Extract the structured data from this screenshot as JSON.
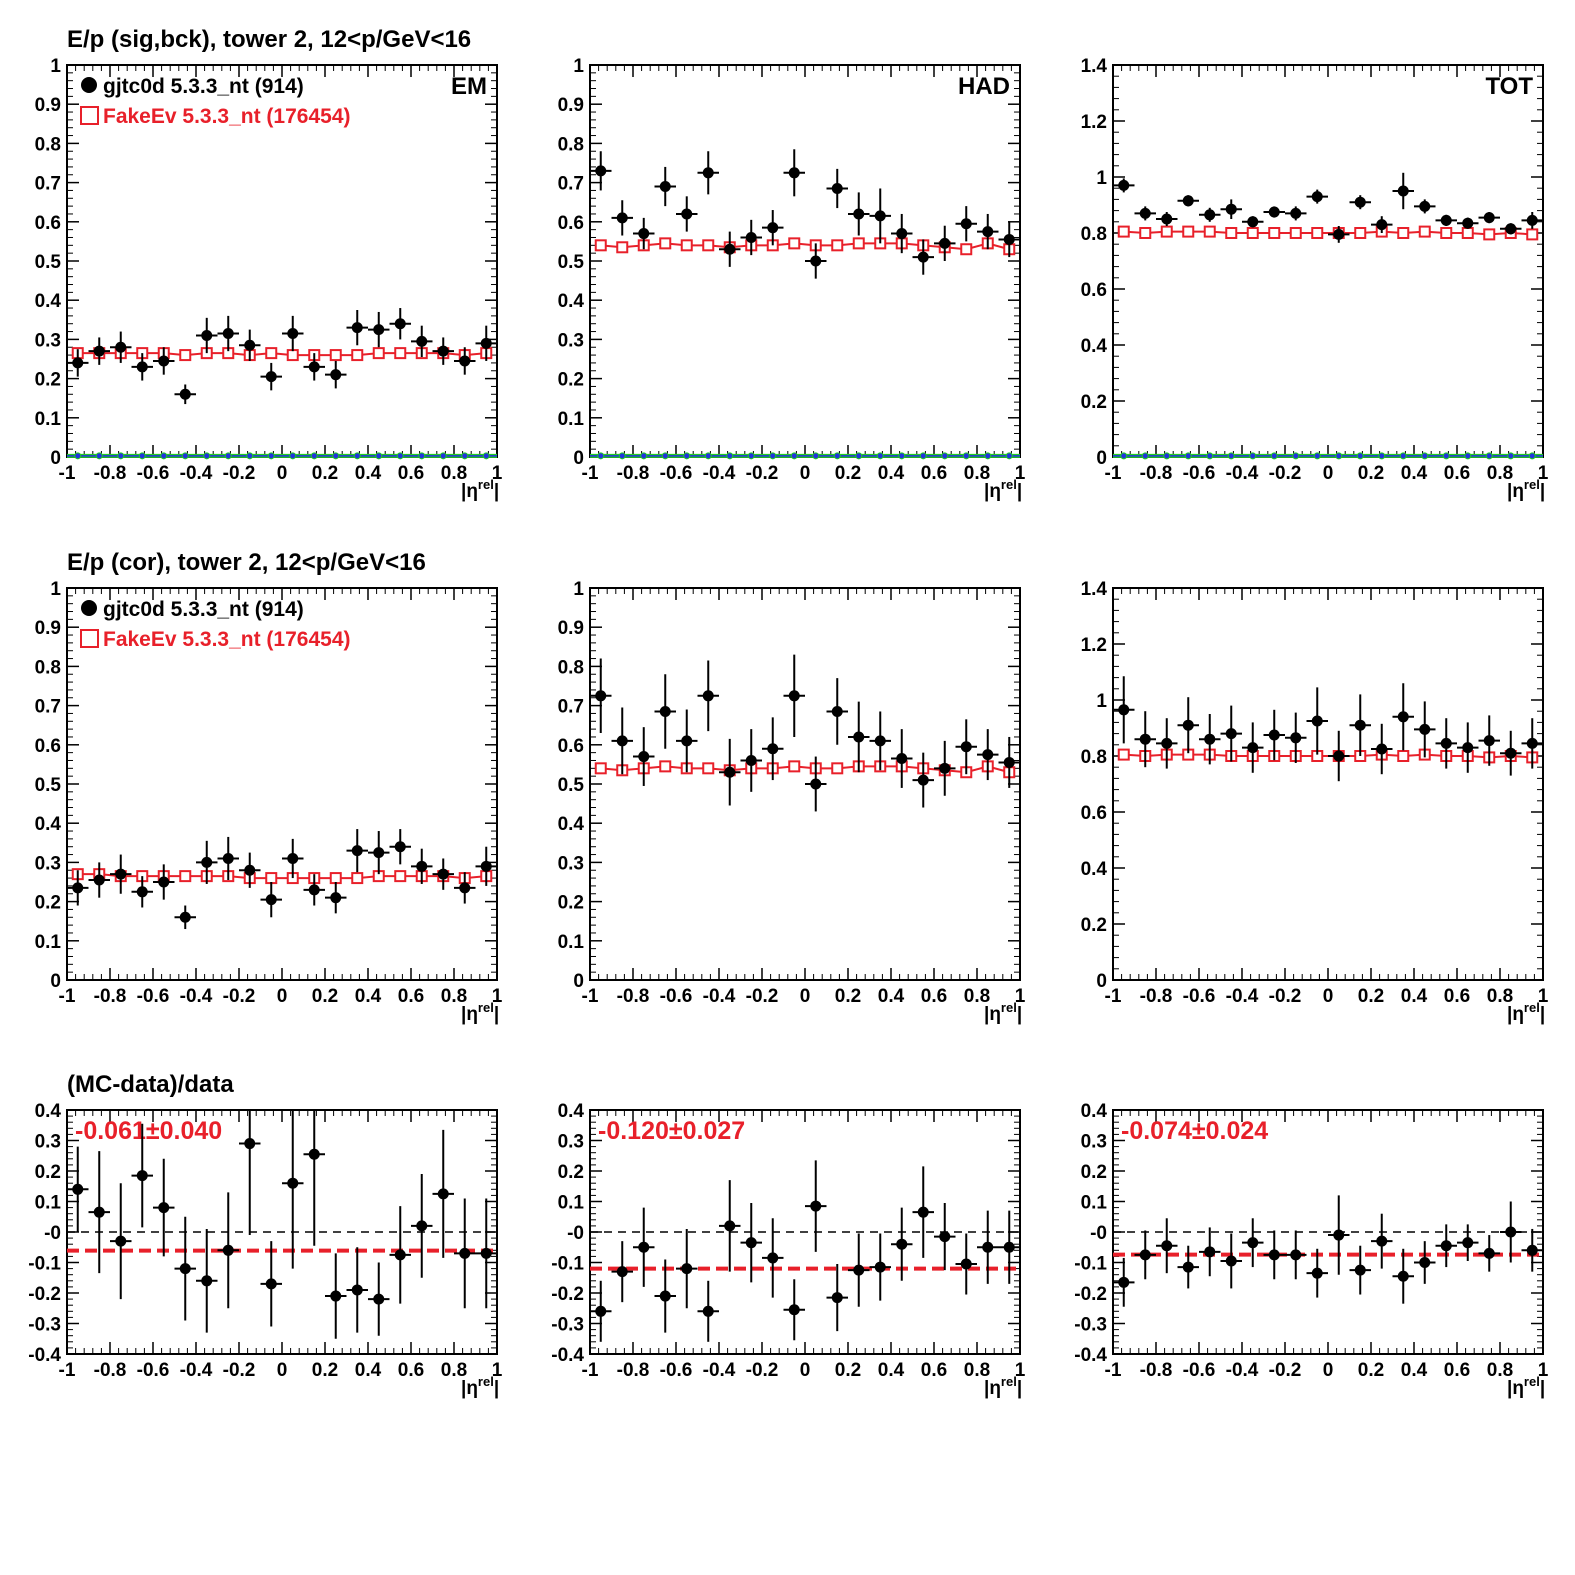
{
  "colors": {
    "data": "#000000",
    "mc": "#e8202a",
    "bg_blue": "#2233dd",
    "bg_green": "#22cc22",
    "axis": "#000000"
  },
  "chart_data": [
    {
      "type": "scatter",
      "row": 0,
      "col": 0,
      "title": "E/p (sig,bck), tower 2, 12<p/GeV<16",
      "corner_label": "EM",
      "xlabel": "|η",
      "xlabel_sup": "rel",
      "xlabel_end": "|",
      "xlim": [
        -1,
        1
      ],
      "ylim": [
        0,
        1
      ],
      "yticks": [
        "0",
        "0.1",
        "0.2",
        "0.3",
        "0.4",
        "0.5",
        "0.6",
        "0.7",
        "0.8",
        "0.9",
        "1"
      ],
      "ytick_values": [
        0,
        0.1,
        0.2,
        0.3,
        0.4,
        0.5,
        0.6,
        0.7,
        0.8,
        0.9,
        1
      ],
      "legend": [
        {
          "label": "gjtc0d 5.3.3_nt (914)",
          "marker": "filled-circle"
        },
        {
          "label": "FakeEv 5.3.3_nt (176454)",
          "marker": "open-square"
        }
      ],
      "data": {
        "y": [
          0.24,
          0.27,
          0.28,
          0.23,
          0.245,
          0.16,
          0.31,
          0.315,
          0.285,
          0.205,
          0.315,
          0.23,
          0.21,
          0.33,
          0.325,
          0.34,
          0.295,
          0.27,
          0.245,
          0.29
        ],
        "err": [
          0.035,
          0.035,
          0.04,
          0.035,
          0.035,
          0.025,
          0.045,
          0.045,
          0.04,
          0.035,
          0.045,
          0.035,
          0.035,
          0.045,
          0.045,
          0.04,
          0.04,
          0.035,
          0.035,
          0.045
        ]
      },
      "mc": {
        "y": [
          0.265,
          0.265,
          0.265,
          0.265,
          0.265,
          0.26,
          0.265,
          0.265,
          0.26,
          0.265,
          0.26,
          0.26,
          0.26,
          0.26,
          0.265,
          0.265,
          0.265,
          0.265,
          0.26,
          0.265
        ]
      },
      "background": {
        "y": 0.003
      }
    },
    {
      "type": "scatter",
      "row": 0,
      "col": 1,
      "corner_label": "HAD",
      "xlabel": "|η",
      "xlabel_sup": "rel",
      "xlabel_end": "|",
      "xlim": [
        -1,
        1
      ],
      "ylim": [
        0,
        1
      ],
      "yticks": [
        "0",
        "0.1",
        "0.2",
        "0.3",
        "0.4",
        "0.5",
        "0.6",
        "0.7",
        "0.8",
        "0.9",
        "1"
      ],
      "ytick_values": [
        0,
        0.1,
        0.2,
        0.3,
        0.4,
        0.5,
        0.6,
        0.7,
        0.8,
        0.9,
        1
      ],
      "data": {
        "y": [
          0.73,
          0.61,
          0.57,
          0.69,
          0.62,
          0.725,
          0.53,
          0.56,
          0.585,
          0.725,
          0.5,
          0.685,
          0.62,
          0.615,
          0.57,
          0.51,
          0.545,
          0.595,
          0.575,
          0.555
        ],
        "err": [
          0.05,
          0.045,
          0.04,
          0.05,
          0.045,
          0.055,
          0.045,
          0.045,
          0.045,
          0.06,
          0.045,
          0.05,
          0.055,
          0.07,
          0.05,
          0.045,
          0.045,
          0.045,
          0.045,
          0.045
        ]
      },
      "mc": {
        "y": [
          0.54,
          0.535,
          0.54,
          0.545,
          0.54,
          0.54,
          0.535,
          0.54,
          0.54,
          0.545,
          0.54,
          0.54,
          0.545,
          0.545,
          0.545,
          0.54,
          0.535,
          0.53,
          0.545,
          0.53
        ]
      },
      "background": {
        "y": 0.003
      }
    },
    {
      "type": "scatter",
      "row": 0,
      "col": 2,
      "corner_label": "TOT",
      "xlabel": "|η",
      "xlabel_sup": "rel",
      "xlabel_end": "|",
      "xlim": [
        -1,
        1
      ],
      "ylim": [
        0,
        1.4
      ],
      "yticks": [
        "0",
        "0.2",
        "0.4",
        "0.6",
        "0.8",
        "1",
        "1.2",
        "1.4"
      ],
      "ytick_values": [
        0,
        0.2,
        0.4,
        0.6,
        0.8,
        1,
        1.2,
        1.4
      ],
      "data": {
        "y": [
          0.97,
          0.87,
          0.85,
          0.915,
          0.865,
          0.885,
          0.84,
          0.875,
          0.87,
          0.93,
          0.795,
          0.91,
          0.83,
          0.95,
          0.895,
          0.845,
          0.835,
          0.855,
          0.815,
          0.845
        ],
        "err": [
          0.025,
          0.025,
          0.025,
          0.02,
          0.025,
          0.035,
          0.02,
          0.02,
          0.025,
          0.025,
          0.03,
          0.025,
          0.03,
          0.065,
          0.025,
          0.02,
          0.02,
          0.02,
          0.02,
          0.03
        ]
      },
      "mc": {
        "y": [
          0.805,
          0.8,
          0.805,
          0.805,
          0.805,
          0.8,
          0.8,
          0.8,
          0.8,
          0.8,
          0.8,
          0.8,
          0.805,
          0.8,
          0.805,
          0.8,
          0.8,
          0.795,
          0.8,
          0.795
        ]
      },
      "background": {
        "y": 0.004
      }
    },
    {
      "type": "scatter",
      "row": 1,
      "col": 0,
      "title": "E/p (cor), tower 2, 12<p/GeV<16",
      "xlabel": "|η",
      "xlabel_sup": "rel",
      "xlabel_end": "|",
      "xlim": [
        -1,
        1
      ],
      "ylim": [
        0,
        1
      ],
      "yticks": [
        "0",
        "0.1",
        "0.2",
        "0.3",
        "0.4",
        "0.5",
        "0.6",
        "0.7",
        "0.8",
        "0.9",
        "1"
      ],
      "ytick_values": [
        0,
        0.1,
        0.2,
        0.3,
        0.4,
        0.5,
        0.6,
        0.7,
        0.8,
        0.9,
        1
      ],
      "legend": [
        {
          "label": "gjtc0d 5.3.3_nt (914)",
          "marker": "filled-circle"
        },
        {
          "label": "FakeEv 5.3.3_nt (176454)",
          "marker": "open-square"
        }
      ],
      "data": {
        "y": [
          0.235,
          0.255,
          0.27,
          0.225,
          0.25,
          0.16,
          0.3,
          0.31,
          0.28,
          0.205,
          0.31,
          0.23,
          0.21,
          0.33,
          0.325,
          0.34,
          0.29,
          0.27,
          0.235,
          0.29
        ],
        "err": [
          0.045,
          0.045,
          0.05,
          0.04,
          0.045,
          0.03,
          0.055,
          0.055,
          0.045,
          0.045,
          0.05,
          0.04,
          0.04,
          0.055,
          0.055,
          0.045,
          0.045,
          0.04,
          0.04,
          0.05
        ]
      },
      "mc": {
        "y": [
          0.27,
          0.27,
          0.265,
          0.265,
          0.265,
          0.265,
          0.265,
          0.265,
          0.26,
          0.26,
          0.26,
          0.26,
          0.26,
          0.26,
          0.265,
          0.265,
          0.265,
          0.265,
          0.26,
          0.265
        ]
      }
    },
    {
      "type": "scatter",
      "row": 1,
      "col": 1,
      "xlabel": "|η",
      "xlabel_sup": "rel",
      "xlabel_end": "|",
      "xlim": [
        -1,
        1
      ],
      "ylim": [
        0,
        1
      ],
      "yticks": [
        "0",
        "0.1",
        "0.2",
        "0.3",
        "0.4",
        "0.5",
        "0.6",
        "0.7",
        "0.8",
        "0.9",
        "1"
      ],
      "ytick_values": [
        0,
        0.1,
        0.2,
        0.3,
        0.4,
        0.5,
        0.6,
        0.7,
        0.8,
        0.9,
        1
      ],
      "data": {
        "y": [
          0.725,
          0.61,
          0.57,
          0.685,
          0.61,
          0.725,
          0.53,
          0.56,
          0.59,
          0.725,
          0.5,
          0.685,
          0.62,
          0.61,
          0.565,
          0.51,
          0.54,
          0.595,
          0.575,
          0.555
        ],
        "err": [
          0.095,
          0.085,
          0.075,
          0.095,
          0.08,
          0.09,
          0.085,
          0.08,
          0.08,
          0.105,
          0.07,
          0.085,
          0.09,
          0.075,
          0.075,
          0.07,
          0.07,
          0.07,
          0.065,
          0.065
        ]
      },
      "mc": {
        "y": [
          0.54,
          0.535,
          0.54,
          0.545,
          0.54,
          0.54,
          0.535,
          0.54,
          0.54,
          0.545,
          0.54,
          0.54,
          0.545,
          0.545,
          0.545,
          0.54,
          0.535,
          0.53,
          0.545,
          0.53
        ]
      }
    },
    {
      "type": "scatter",
      "row": 1,
      "col": 2,
      "xlabel": "|η",
      "xlabel_sup": "rel",
      "xlabel_end": "|",
      "xlim": [
        -1,
        1
      ],
      "ylim": [
        0,
        1.4
      ],
      "yticks": [
        "0",
        "0.2",
        "0.4",
        "0.6",
        "0.8",
        "1",
        "1.2",
        "1.4"
      ],
      "ytick_values": [
        0,
        0.2,
        0.4,
        0.6,
        0.8,
        1,
        1.2,
        1.4
      ],
      "data": {
        "y": [
          0.965,
          0.86,
          0.845,
          0.91,
          0.86,
          0.88,
          0.83,
          0.875,
          0.865,
          0.925,
          0.8,
          0.91,
          0.825,
          0.94,
          0.895,
          0.845,
          0.83,
          0.855,
          0.81,
          0.845
        ],
        "err": [
          0.12,
          0.1,
          0.09,
          0.1,
          0.09,
          0.1,
          0.09,
          0.09,
          0.09,
          0.12,
          0.09,
          0.11,
          0.09,
          0.12,
          0.1,
          0.09,
          0.09,
          0.09,
          0.08,
          0.09
        ]
      },
      "mc": {
        "y": [
          0.805,
          0.8,
          0.805,
          0.805,
          0.805,
          0.8,
          0.8,
          0.8,
          0.8,
          0.8,
          0.8,
          0.8,
          0.805,
          0.8,
          0.805,
          0.8,
          0.8,
          0.795,
          0.8,
          0.795
        ]
      }
    },
    {
      "type": "scatter",
      "row": 2,
      "col": 0,
      "title": "(MC-data)/data",
      "annotation": "-0.061±0.040",
      "fit": -0.061,
      "xlabel": "|η",
      "xlabel_sup": "rel",
      "xlabel_end": "|",
      "xlim": [
        -1,
        1
      ],
      "ylim": [
        -0.4,
        0.4
      ],
      "yticks": [
        "-0.4",
        "-0.3",
        "-0.2",
        "-0.1",
        "-0",
        "0.1",
        "0.2",
        "0.3",
        "0.4"
      ],
      "ytick_values": [
        -0.4,
        -0.3,
        -0.2,
        -0.1,
        0,
        0.1,
        0.2,
        0.3,
        0.4
      ],
      "data": {
        "y": [
          0.14,
          0.065,
          -0.03,
          0.185,
          0.08,
          -0.12,
          -0.16,
          -0.06,
          0.29,
          -0.17,
          0.16,
          0.255,
          -0.21,
          -0.19,
          -0.22,
          -0.075,
          0.02,
          0.125,
          -0.07,
          -0.07
        ],
        "err": [
          0.14,
          0.2,
          0.19,
          0.17,
          0.16,
          0.17,
          0.17,
          0.19,
          0.3,
          0.14,
          0.28,
          0.3,
          0.14,
          0.14,
          0.12,
          0.16,
          0.17,
          0.21,
          0.18,
          0.18
        ]
      }
    },
    {
      "type": "scatter",
      "row": 2,
      "col": 1,
      "annotation": "-0.120±0.027",
      "fit": -0.12,
      "xlabel": "|η",
      "xlabel_sup": "rel",
      "xlabel_end": "|",
      "xlim": [
        -1,
        1
      ],
      "ylim": [
        -0.4,
        0.4
      ],
      "yticks": [
        "-0.4",
        "-0.3",
        "-0.2",
        "-0.1",
        "-0",
        "0.1",
        "0.2",
        "0.3",
        "0.4"
      ],
      "ytick_values": [
        -0.4,
        -0.3,
        -0.2,
        -0.1,
        0,
        0.1,
        0.2,
        0.3,
        0.4
      ],
      "data": {
        "y": [
          -0.26,
          -0.13,
          -0.05,
          -0.21,
          -0.12,
          -0.26,
          0.02,
          -0.035,
          -0.085,
          -0.255,
          0.085,
          -0.215,
          -0.125,
          -0.115,
          -0.04,
          0.065,
          -0.015,
          -0.105,
          -0.05,
          -0.05
        ],
        "err": [
          0.1,
          0.1,
          0.13,
          0.12,
          0.13,
          0.1,
          0.15,
          0.13,
          0.13,
          0.1,
          0.15,
          0.11,
          0.12,
          0.11,
          0.12,
          0.15,
          0.11,
          0.1,
          0.12,
          0.12
        ]
      },
      "caption": ""
    },
    {
      "type": "scatter",
      "row": 2,
      "col": 2,
      "annotation": "-0.074±0.024",
      "fit": -0.074,
      "xlabel": "|η",
      "xlabel_sup": "rel",
      "xlabel_end": "|",
      "xlim": [
        -1,
        1
      ],
      "ylim": [
        -0.4,
        0.4
      ],
      "yticks": [
        "-0.4",
        "-0.3",
        "-0.2",
        "-0.1",
        "-0",
        "0.1",
        "0.2",
        "0.3",
        "0.4"
      ],
      "ytick_values": [
        -0.4,
        -0.3,
        -0.2,
        -0.1,
        0,
        0.1,
        0.2,
        0.3,
        0.4
      ],
      "data": {
        "y": [
          -0.165,
          -0.075,
          -0.045,
          -0.115,
          -0.065,
          -0.095,
          -0.035,
          -0.075,
          -0.075,
          -0.135,
          -0.01,
          -0.125,
          -0.03,
          -0.145,
          -0.1,
          -0.045,
          -0.035,
          -0.07,
          0,
          -0.06
        ],
        "err": [
          0.08,
          0.08,
          0.09,
          0.07,
          0.08,
          0.09,
          0.08,
          0.08,
          0.08,
          0.08,
          0.13,
          0.08,
          0.09,
          0.09,
          0.07,
          0.07,
          0.06,
          0.06,
          0.1,
          0.07
        ]
      }
    }
  ],
  "xticks": [
    "-1",
    "-0.8",
    "-0.6",
    "-0.4",
    "-0.2",
    "0",
    "0.2",
    "0.4",
    "0.6",
    "0.8",
    "1"
  ],
  "xtick_values": [
    -1,
    -0.8,
    -0.6,
    -0.4,
    -0.2,
    0,
    0.2,
    0.4,
    0.6,
    0.8,
    1
  ]
}
